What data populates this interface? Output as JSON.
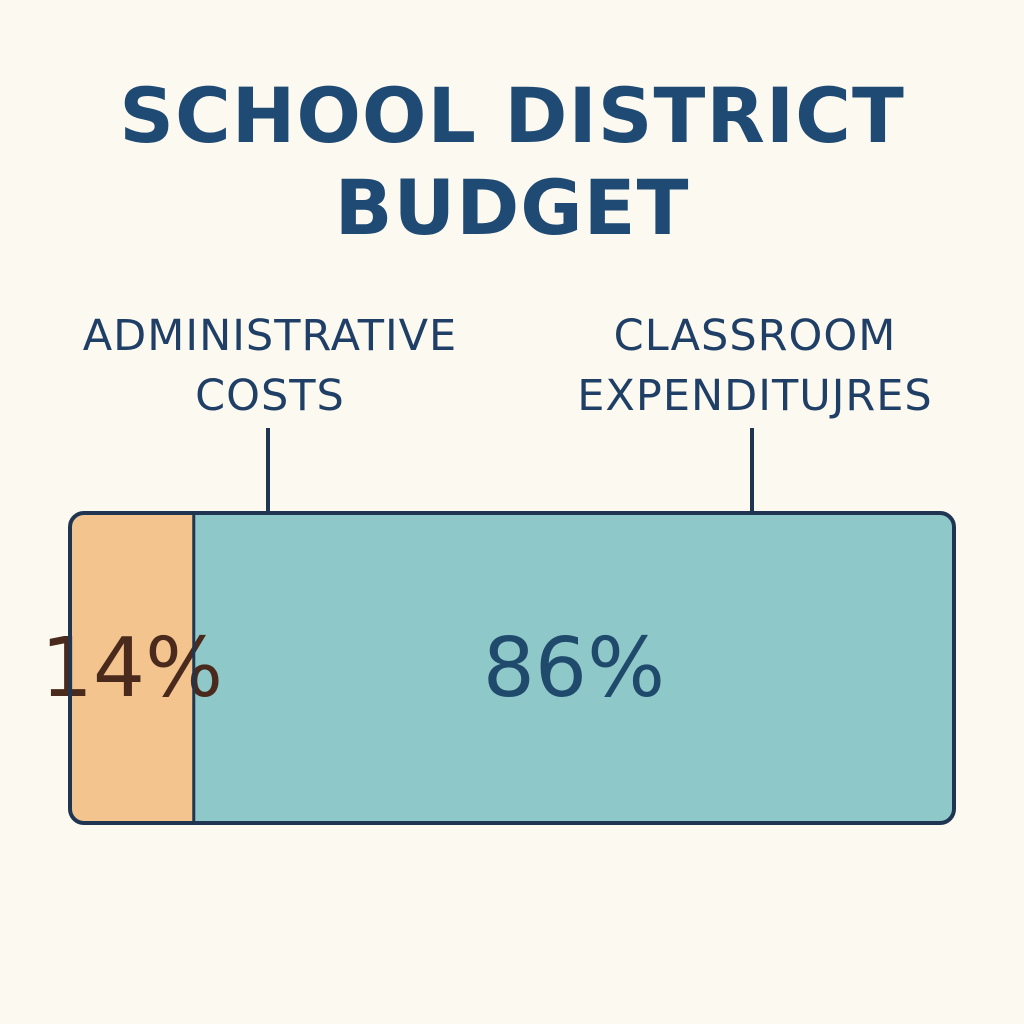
{
  "chart_data": {
    "type": "bar",
    "stacked": true,
    "orientation": "horizontal",
    "title": "SCHOOL DISTRICT\nBUDGET",
    "unit": "%",
    "segments": [
      {
        "label": "ADMINISTRATIVE\nCOSTS",
        "value": 14,
        "value_label": "14%",
        "color": "#f4c48f",
        "text_color": "#4a2a1c"
      },
      {
        "label": "CLASSROOM\nEXPENDITUJRES",
        "value": 86,
        "value_label": "86%",
        "color": "#8ec8c8",
        "text_color": "#1f4a6b"
      }
    ],
    "total": 100
  },
  "colors": {
    "background": "#fcf9f0",
    "outline": "#1f3552",
    "title": "#1f4a73"
  }
}
